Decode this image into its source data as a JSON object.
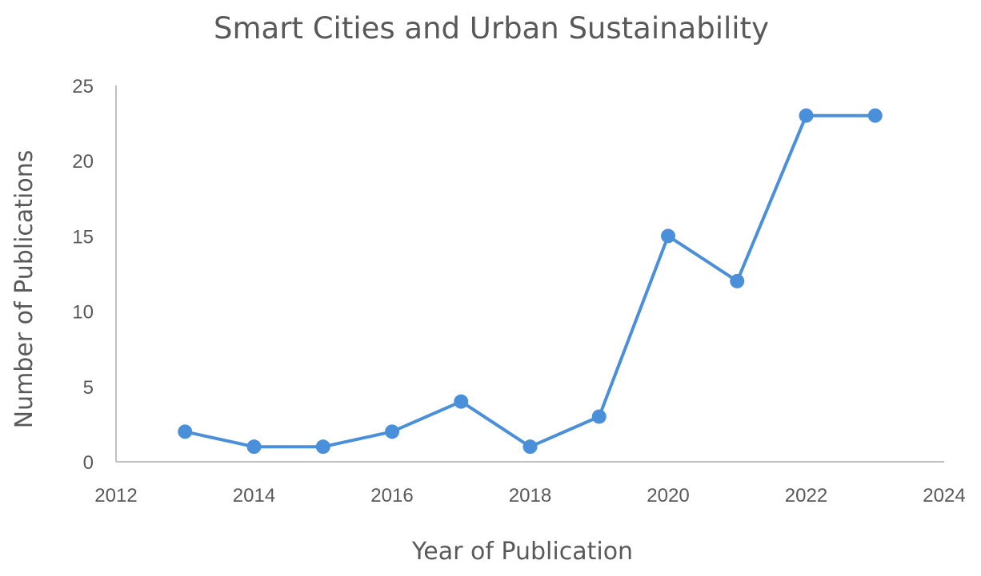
{
  "chart_data": {
    "type": "line",
    "title": "Smart Cities and Urban Sustainability",
    "xlabel": "Year of Publication",
    "ylabel": "Number of Publications",
    "xlim": [
      2012,
      2024
    ],
    "ylim": [
      0,
      25
    ],
    "x_ticks": [
      2012,
      2014,
      2016,
      2018,
      2020,
      2022,
      2024
    ],
    "y_ticks": [
      0,
      5,
      10,
      15,
      20,
      25
    ],
    "grid": false,
    "legend": "none",
    "series": [
      {
        "color": "#4a8fd9",
        "x": [
          2013,
          2014,
          2015,
          2016,
          2017,
          2018,
          2019,
          2020,
          2021,
          2022,
          2023
        ],
        "y": [
          2,
          1,
          1,
          2,
          4,
          1,
          3,
          15,
          12,
          23,
          23
        ]
      }
    ]
  }
}
